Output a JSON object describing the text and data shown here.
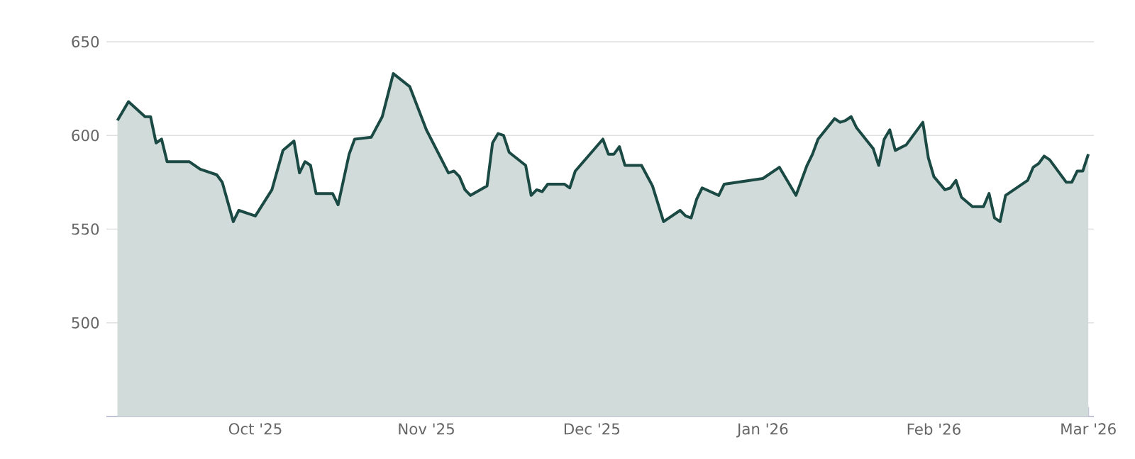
{
  "chart_data": {
    "type": "area",
    "x": [
      "2025-09-06",
      "2025-09-08",
      "2025-09-11",
      "2025-09-12",
      "2025-09-13",
      "2025-09-14",
      "2025-09-15",
      "2025-09-18",
      "2025-09-19",
      "2025-09-21",
      "2025-09-24",
      "2025-09-25",
      "2025-09-27",
      "2025-09-28",
      "2025-10-01",
      "2025-10-04",
      "2025-10-06",
      "2025-10-08",
      "2025-10-09",
      "2025-10-10",
      "2025-10-11",
      "2025-10-12",
      "2025-10-15",
      "2025-10-16",
      "2025-10-18",
      "2025-10-19",
      "2025-10-22",
      "2025-10-24",
      "2025-10-26",
      "2025-10-29",
      "2025-11-01",
      "2025-11-05",
      "2025-11-06",
      "2025-11-07",
      "2025-11-08",
      "2025-11-09",
      "2025-11-12",
      "2025-11-13",
      "2025-11-14",
      "2025-11-15",
      "2025-11-16",
      "2025-11-19",
      "2025-11-20",
      "2025-11-21",
      "2025-11-22",
      "2025-11-23",
      "2025-11-26",
      "2025-11-27",
      "2025-11-28",
      "2025-12-03",
      "2025-12-04",
      "2025-12-05",
      "2025-12-06",
      "2025-12-07",
      "2025-12-10",
      "2025-12-12",
      "2025-12-14",
      "2025-12-17",
      "2025-12-18",
      "2025-12-19",
      "2025-12-20",
      "2025-12-21",
      "2025-12-24",
      "2025-12-25",
      "2026-01-01",
      "2026-01-04",
      "2026-01-07",
      "2026-01-09",
      "2026-01-10",
      "2026-01-11",
      "2026-01-14",
      "2026-01-15",
      "2026-01-16",
      "2026-01-17",
      "2026-01-18",
      "2026-01-21",
      "2026-01-22",
      "2026-01-23",
      "2026-01-24",
      "2026-01-25",
      "2026-01-27",
      "2026-01-30",
      "2026-01-31",
      "2026-02-01",
      "2026-02-03",
      "2026-02-04",
      "2026-02-05",
      "2026-02-06",
      "2026-02-08",
      "2026-02-10",
      "2026-02-11",
      "2026-02-12",
      "2026-02-13",
      "2026-02-14",
      "2026-02-18",
      "2026-02-19",
      "2026-02-20",
      "2026-02-21",
      "2026-02-22",
      "2026-02-25",
      "2026-02-26",
      "2026-02-27",
      "2026-02-28",
      "2026-03-01"
    ],
    "series": [
      {
        "color": "#1b4a44",
        "values": [
          608,
          618,
          610,
          610,
          596,
          598,
          586,
          586,
          586,
          582,
          579,
          575,
          554,
          560,
          557,
          571,
          592,
          597,
          580,
          586,
          584,
          569,
          569,
          563,
          590,
          598,
          599,
          610,
          633,
          626,
          603,
          580,
          581,
          578,
          571,
          568,
          573,
          596,
          601,
          600,
          591,
          584,
          568,
          571,
          570,
          574,
          574,
          572,
          581,
          598,
          590,
          590,
          594,
          584,
          584,
          573,
          554,
          560,
          557,
          556,
          566,
          572,
          568,
          574,
          577,
          583,
          568,
          584,
          590,
          598,
          609,
          607,
          608,
          610,
          604,
          593,
          584,
          598,
          603,
          592,
          595,
          607,
          588,
          578,
          571,
          572,
          576,
          567,
          562,
          562,
          569,
          556,
          554,
          568,
          576,
          583,
          585,
          589,
          587,
          575,
          575,
          581,
          581,
          590
        ]
      }
    ],
    "xlim": [
      "2025-09-04",
      "2026-03-02"
    ],
    "xticks": [
      {
        "value": "2025-10-01",
        "label": "Oct '25"
      },
      {
        "value": "2025-11-01",
        "label": "Nov '25"
      },
      {
        "value": "2025-12-01",
        "label": "Dec '25"
      },
      {
        "value": "2026-01-01",
        "label": "Jan '26"
      },
      {
        "value": "2026-02-01",
        "label": "Feb '26"
      },
      {
        "value": "2026-03-01",
        "label": "Mar '26"
      }
    ],
    "ylim": [
      450,
      650
    ],
    "yticks": [
      500,
      550,
      600,
      650
    ],
    "grid": "y"
  }
}
